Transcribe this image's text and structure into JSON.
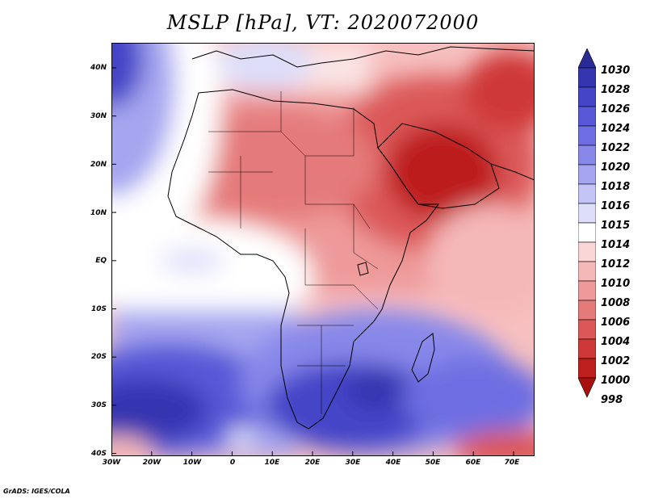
{
  "title": "MSLP [hPa], VT: 2020072000",
  "y_axis_labels": [
    "40N",
    "30N",
    "20N",
    "10N",
    "EQ",
    "10S",
    "20S",
    "30S",
    "40S"
  ],
  "x_axis_labels": [
    "30W",
    "20W",
    "10W",
    "0",
    "10E",
    "20E",
    "30E",
    "40E",
    "50E",
    "60E",
    "70E"
  ],
  "colorbar_labels": [
    "1030",
    "1028",
    "1026",
    "1024",
    "1022",
    "1020",
    "1018",
    "1016",
    "1015",
    "1014",
    "1012",
    "1010",
    "1008",
    "1006",
    "1004",
    "1002",
    "1000",
    "998"
  ],
  "colorbar_colors": [
    "#2a2a96",
    "#3535b0",
    "#4545c8",
    "#5858d8",
    "#6e6ee2",
    "#8888ea",
    "#a6a6f0",
    "#c4c4f6",
    "#dedefa",
    "#ffffff",
    "#fbd6d6",
    "#f5b8b8",
    "#ee9a9a",
    "#e57a7a",
    "#dc5858",
    "#cf3838",
    "#bd1f1f",
    "#a81010"
  ],
  "credit": "GrADS: IGES/COLA"
}
